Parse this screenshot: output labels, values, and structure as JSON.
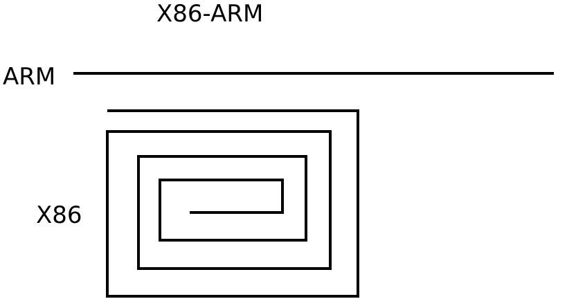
{
  "title": "X86-ARM",
  "labels": {
    "arm": "ARM",
    "x86": "X86"
  },
  "colors": {
    "stroke": "#000000",
    "background": "#ffffff"
  }
}
